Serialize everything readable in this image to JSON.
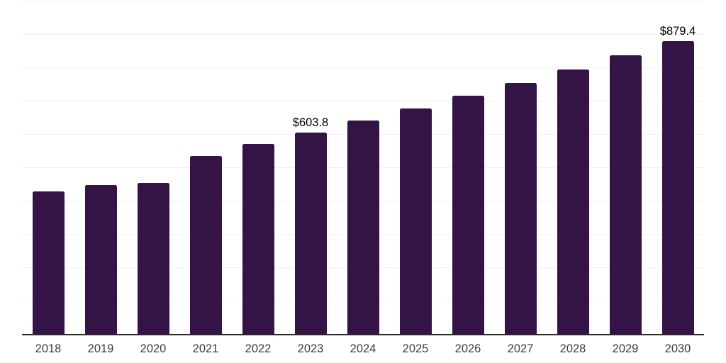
{
  "chart_data": {
    "type": "bar",
    "title": "",
    "xlabel": "",
    "ylabel": "",
    "categories": [
      "2018",
      "2019",
      "2020",
      "2021",
      "2022",
      "2023",
      "2024",
      "2025",
      "2026",
      "2027",
      "2028",
      "2029",
      "2030"
    ],
    "values": [
      428,
      447,
      453,
      534,
      570,
      603.8,
      640,
      677,
      715,
      753,
      794,
      836,
      879.4
    ],
    "value_labels": [
      "",
      "",
      "",
      "",
      "",
      "$603.8",
      "",
      "",
      "",
      "",
      "",
      "",
      "$879.4"
    ],
    "currency_prefix": "$",
    "ylim": [
      0,
      1000
    ],
    "gridline_step": 100,
    "grid": true,
    "legend": false,
    "colors": {
      "bar": "#341347",
      "axis_line": "#2b2b2b",
      "gridline": "#f1f1f1",
      "tick_label": "#3c3c3c",
      "value_label": "#000000",
      "background": "#ffffff"
    }
  }
}
